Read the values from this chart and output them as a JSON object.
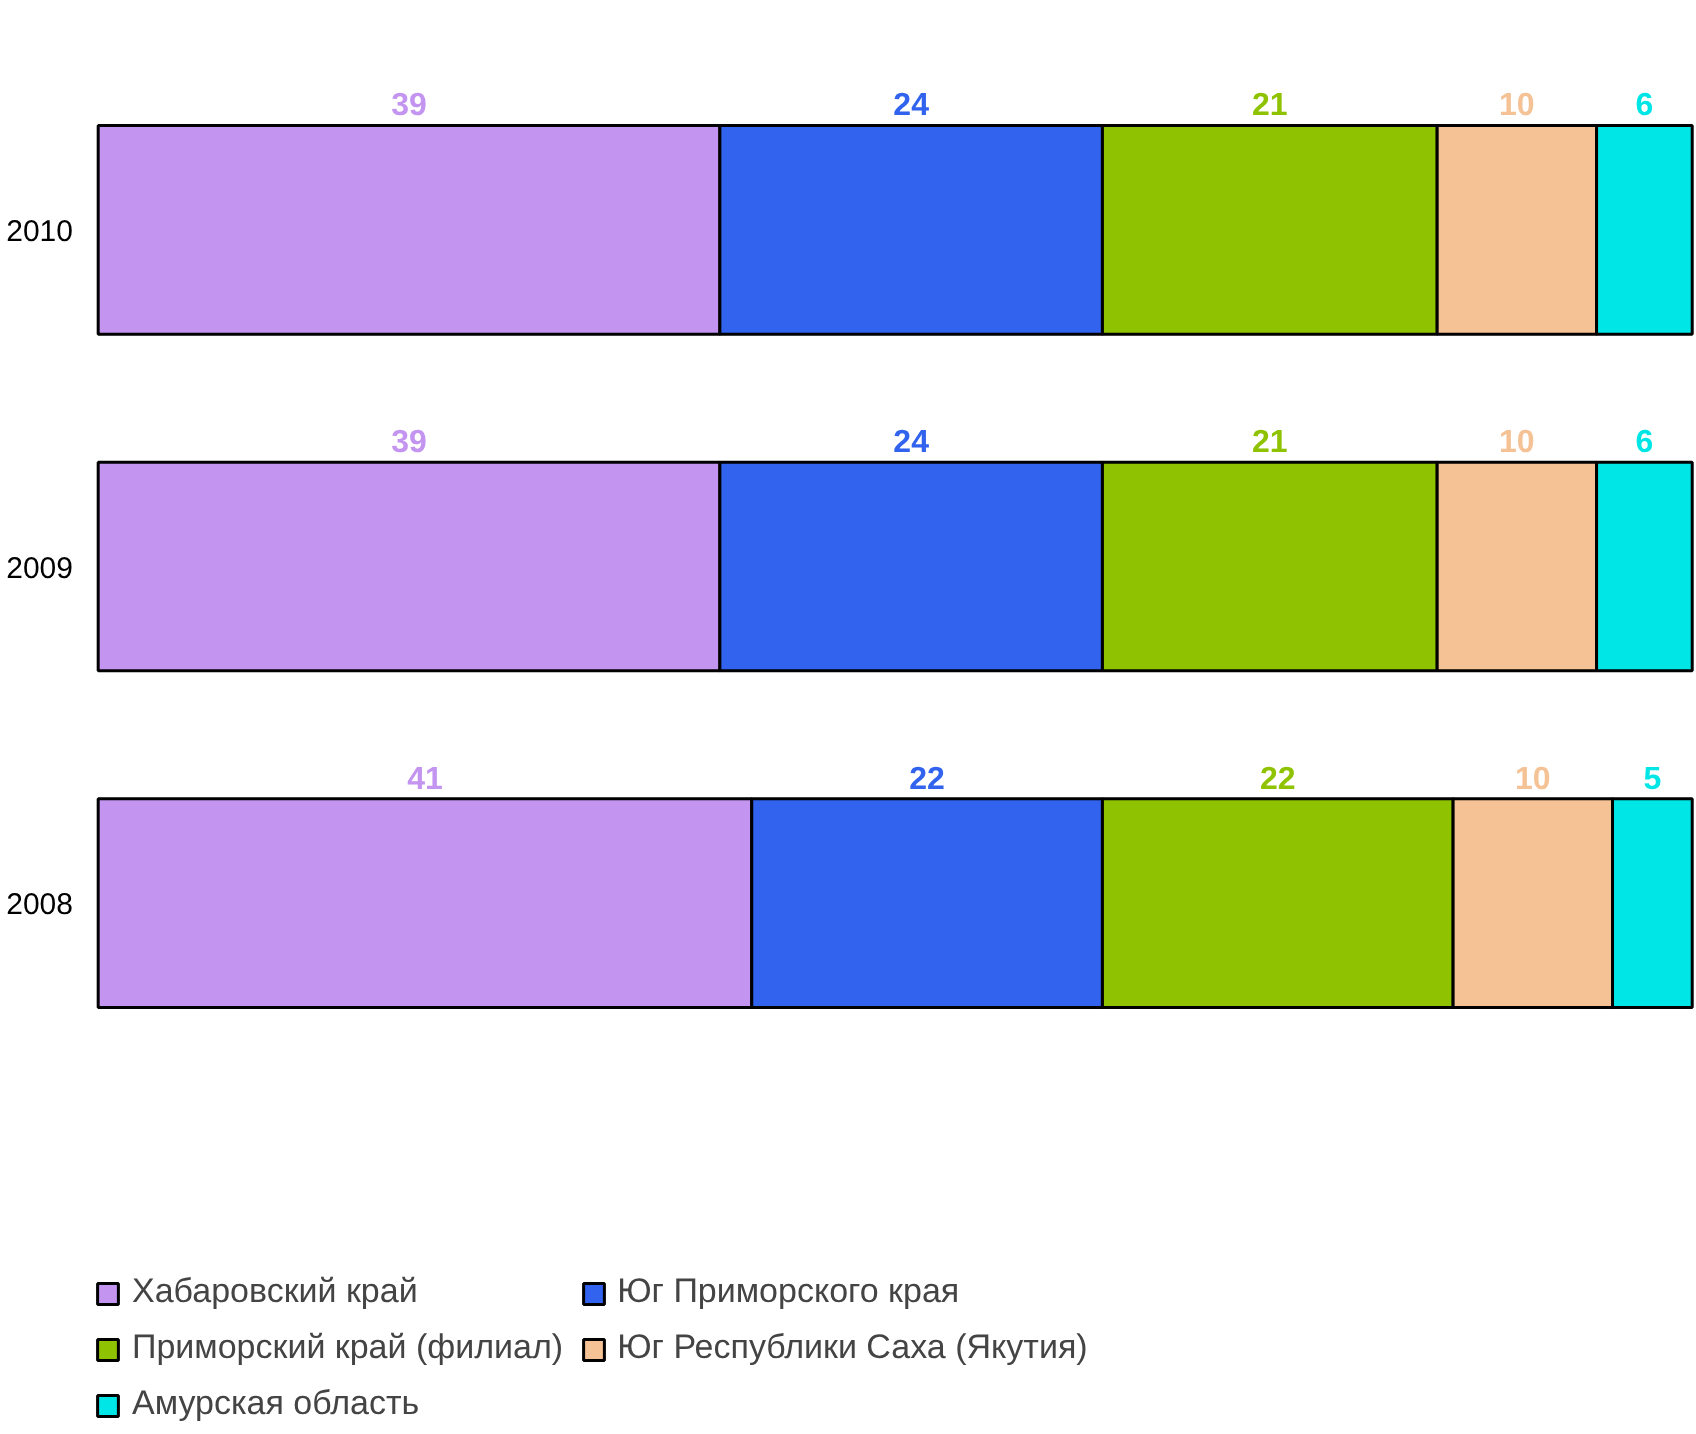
{
  "chart_data": {
    "type": "bar",
    "orientation": "horizontal",
    "stacked": true,
    "data_labels": true,
    "legend": "bottom",
    "grid": false,
    "categories": [
      "2010",
      "2009",
      "2008"
    ],
    "series": [
      {
        "name": "Хабаровский край",
        "color": "#c395f0",
        "values": [
          39,
          39,
          41
        ]
      },
      {
        "name": "Юг Приморского края",
        "color": "#3163ee",
        "values": [
          24,
          24,
          22
        ]
      },
      {
        "name": "Приморский край (филиал)",
        "color": "#8fc200",
        "values": [
          21,
          21,
          22
        ]
      },
      {
        "name": "Юг Республики Саха (Якутия)",
        "color": "#f4c295",
        "values": [
          10,
          10,
          10
        ]
      },
      {
        "name": "Амурская область",
        "color": "#00e6e6",
        "values": [
          6,
          6,
          5
        ]
      }
    ]
  }
}
